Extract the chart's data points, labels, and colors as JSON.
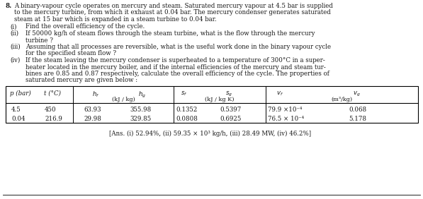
{
  "title_number": "8.",
  "main_text_lines": [
    "A binary-vapour cycle operates on mercury and steam. Saturated mercury vapour at 4.5 bar is supplied",
    "to the mercury turbine, from which it exhaust at 0.04 bar. The mercury condenser generates saturated",
    "steam at 15 bar which is expanded in a steam turbine to 0.04 bar."
  ],
  "items": [
    [
      "(i)",
      "Find the overall efficiency of the cycle."
    ],
    [
      "(ii)",
      "If 50000 kg/h of steam flows through the steam turbine, what is the flow through the mercury"
    ],
    [
      "",
      "turbine ?"
    ],
    [
      "(iii)",
      "Assuming that all processes are reversible, what is the useful work done in the binary vapour cycle"
    ],
    [
      "",
      "for the specified steam flow ?"
    ],
    [
      "(iv)",
      "If the steam leaving the mercury condenser is superheated to a temperature of 300°C in a super-"
    ],
    [
      "",
      "heater located in the mercury boiler, and if the internal efficiencies of the mercury and steam tur-"
    ],
    [
      "",
      "bines are 0.85 and 0.87 respectively, calculate the overall efficiency of the cycle. The properties of"
    ],
    [
      "",
      "saturated mercury are given below :"
    ]
  ],
  "col_headers_line1": [
    "p (bar)",
    "t (°C)",
    "hₗ",
    "hₘ",
    "sₗ",
    "sₘ",
    "vₗ",
    "vₘ"
  ],
  "col_headers_line2_h": "(kJ / kg)",
  "col_headers_line2_s": "(kJ / kg K)",
  "col_headers_line2_v": "(m³/kg)",
  "table_data": [
    [
      "4.5",
      "450",
      "63.93",
      "355.98",
      "0.1352",
      "0.5397",
      "79.9 ×10⁻⁴",
      "0.068"
    ],
    [
      "0.04",
      "216.9",
      "29.98",
      "329.85",
      "0.0808",
      "0.6925",
      "76.5 × 10⁻⁴",
      "5.178"
    ]
  ],
  "answer_text_normal": "[Ans. ",
  "answer_text_bold": "Ans.",
  "answer_full": "[Ans. (i) 52.94%, (ii) 59.35 × 10³ kg/h, (iii) 28.49 MW, (iv) 46.2%]",
  "bg_color": "#ffffff",
  "text_color": "#1a1a1a",
  "font_size": 6.2,
  "table_font_size": 6.2
}
